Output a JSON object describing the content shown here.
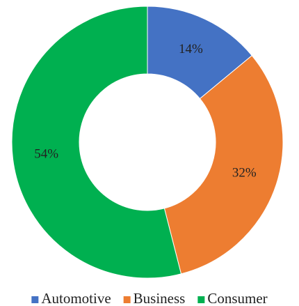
{
  "chart_data": {
    "type": "donut",
    "categories": [
      "Automotive",
      "Business",
      "Consumer"
    ],
    "values": [
      14,
      32,
      54
    ],
    "value_labels": [
      "14%",
      "32%",
      "54%"
    ],
    "colors": [
      "#4472c4",
      "#ed7d31",
      "#00b050"
    ],
    "legend": "bottom"
  }
}
